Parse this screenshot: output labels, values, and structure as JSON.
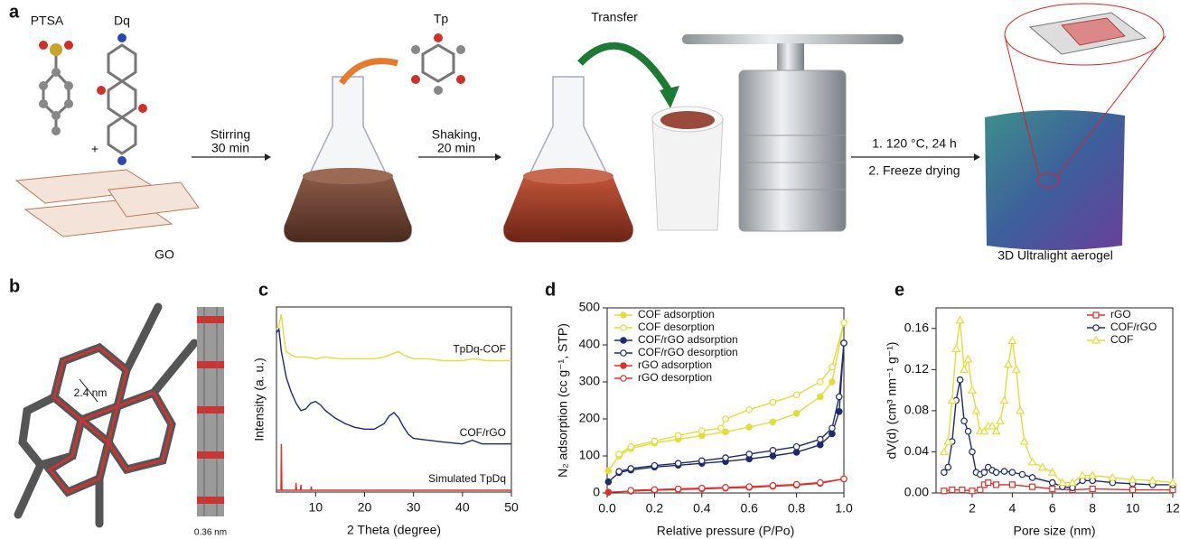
{
  "panel_a": {
    "letter": "a",
    "ptsa": "PTSA",
    "dq": "Dq",
    "plus": "+",
    "go": "GO",
    "stirring": "Stirring",
    "stirring_time": "30 min",
    "tp": "Tp",
    "shaking": "Shaking,",
    "shaking_time": "20 min",
    "transfer": "Transfer",
    "step1": "1. 120 °C, 24 h",
    "step2": "2. Freeze drying",
    "product": "3D Ultralight aerogel"
  },
  "panel_b": {
    "letter": "b",
    "pore": "2.4 nm",
    "spacing": "0.36 nm"
  },
  "chart_data": [
    {
      "type": "line",
      "panel": "c",
      "xlabel": "2 Theta (degree)",
      "ylabel": "Intensity (a. u.)",
      "xlim": [
        2,
        50
      ],
      "xticks": [
        10,
        20,
        30,
        40,
        50
      ],
      "ylim": [
        0,
        100
      ],
      "curve_labels": true,
      "series": [
        {
          "name": "TpDq-COF",
          "color": "#e3dc3a",
          "x": [
            2,
            2.5,
            3,
            3.5,
            4,
            5,
            6,
            8,
            10,
            12,
            15,
            18,
            20,
            22,
            24,
            26,
            27,
            28,
            30,
            33,
            36,
            40,
            42,
            45,
            48,
            50
          ],
          "values": [
            88,
            90,
            96,
            84,
            76,
            74,
            73,
            73,
            72,
            73,
            72,
            72,
            72,
            72,
            73,
            75,
            76,
            74,
            72,
            72,
            71,
            71,
            72,
            71,
            71,
            71
          ]
        },
        {
          "name": "COF/rGO",
          "color": "#1f2a6e",
          "x": [
            2,
            2.5,
            3,
            4,
            5,
            6,
            7,
            8,
            9,
            10,
            11,
            12,
            14,
            16,
            18,
            20,
            22,
            24,
            25,
            26,
            27,
            28,
            29,
            30,
            33,
            36,
            40,
            42,
            44,
            47,
            50
          ],
          "values": [
            86,
            88,
            76,
            62,
            54,
            48,
            44,
            45,
            48,
            49,
            47,
            44,
            40,
            37,
            35,
            34,
            34,
            37,
            41,
            43,
            40,
            35,
            31,
            29,
            28,
            27,
            26,
            28,
            26,
            26,
            26
          ]
        },
        {
          "name": "Simulated TpDq",
          "color": "#e0302a",
          "x": [
            2,
            2.9,
            3,
            3.1,
            5,
            5.9,
            6,
            6.1,
            6.9,
            7,
            7.1,
            9,
            9.1,
            9.2,
            12,
            25,
            50
          ],
          "values": [
            1,
            1,
            26,
            1,
            1,
            1,
            5,
            1,
            1,
            4,
            1,
            1,
            3,
            1,
            1,
            1,
            1
          ]
        }
      ]
    },
    {
      "type": "line",
      "panel": "d",
      "xlabel": "Relative pressure (P/Po)",
      "ylabel": "N₂ adsorption (cc g⁻¹, STP)",
      "xlim": [
        0,
        1.0
      ],
      "xticks": [
        {
          "value": 0,
          "label": "0.0"
        },
        0.2,
        0.4,
        0.6,
        0.8,
        {
          "value": 1,
          "label": "1.0"
        }
      ],
      "ylim": [
        0,
        500
      ],
      "yticks": [
        0,
        100,
        200,
        300,
        400,
        500
      ],
      "legend": "top-left",
      "series": [
        {
          "name": "COF adsorption",
          "color": "#e3dc3a",
          "marker": "circle",
          "filled": true,
          "x": [
            0.005,
            0.05,
            0.1,
            0.2,
            0.3,
            0.4,
            0.5,
            0.6,
            0.7,
            0.8,
            0.9,
            0.95,
            1.0
          ],
          "values": [
            60,
            100,
            120,
            135,
            145,
            155,
            165,
            178,
            192,
            215,
            260,
            300,
            460
          ]
        },
        {
          "name": "COF desorption",
          "color": "#e3dc3a",
          "marker": "circle",
          "filled": false,
          "x": [
            0.05,
            0.1,
            0.2,
            0.3,
            0.4,
            0.48,
            0.5,
            0.6,
            0.7,
            0.8,
            0.9,
            0.95,
            1.0
          ],
          "values": [
            105,
            125,
            140,
            155,
            168,
            175,
            200,
            225,
            245,
            265,
            300,
            340,
            460
          ]
        },
        {
          "name": "COF/rGO adsorption",
          "color": "#1f2a6e",
          "marker": "circle",
          "filled": true,
          "x": [
            0.005,
            0.05,
            0.1,
            0.2,
            0.3,
            0.4,
            0.5,
            0.6,
            0.7,
            0.8,
            0.9,
            0.95,
            0.98,
            1.0
          ],
          "values": [
            30,
            55,
            62,
            70,
            75,
            80,
            85,
            92,
            100,
            110,
            130,
            160,
            220,
            405
          ]
        },
        {
          "name": "COF/rGO desorption",
          "color": "#1f2a6e",
          "marker": "circle",
          "filled": false,
          "x": [
            0.05,
            0.1,
            0.2,
            0.3,
            0.4,
            0.5,
            0.6,
            0.7,
            0.8,
            0.9,
            0.95,
            0.98,
            1.0
          ],
          "values": [
            58,
            66,
            74,
            80,
            87,
            95,
            105,
            115,
            125,
            145,
            175,
            260,
            405
          ]
        },
        {
          "name": "rGO adsorption",
          "color": "#e0302a",
          "marker": "circle",
          "filled": true,
          "x": [
            0.005,
            0.1,
            0.2,
            0.3,
            0.4,
            0.5,
            0.6,
            0.7,
            0.8,
            0.9,
            1.0
          ],
          "values": [
            2,
            5,
            7,
            9,
            11,
            13,
            15,
            18,
            21,
            26,
            38
          ]
        },
        {
          "name": "rGO desorption",
          "color": "#e0302a",
          "marker": "circle",
          "filled": false,
          "x": [
            0.1,
            0.2,
            0.3,
            0.4,
            0.5,
            0.6,
            0.7,
            0.8,
            0.9,
            1.0
          ],
          "values": [
            7,
            9,
            11,
            13,
            15,
            17,
            20,
            23,
            28,
            38
          ]
        }
      ]
    },
    {
      "type": "line",
      "panel": "e",
      "xlabel": "Pore size (nm)",
      "ylabel": "dV(d) (cm³ nm⁻¹ g⁻¹)",
      "xlim": [
        0.2,
        12
      ],
      "xticks": [
        2,
        4,
        6,
        8,
        10,
        12
      ],
      "ylim": [
        0,
        0.18
      ],
      "yticks": [
        {
          "value": 0,
          "label": "0.00"
        },
        0.04,
        0.08,
        0.12,
        0.16
      ],
      "legend": "top-right",
      "series": [
        {
          "name": "rGO",
          "color": "#e0302a",
          "marker": "square",
          "filled": false,
          "x": [
            0.6,
            1,
            1.5,
            2,
            2.4,
            2.6,
            2.8,
            3.2,
            4,
            5,
            6,
            7,
            8,
            10,
            12
          ],
          "values": [
            0.002,
            0.003,
            0.003,
            0.002,
            0.003,
            0.008,
            0.01,
            0.008,
            0.008,
            0.006,
            0.004,
            0.003,
            0.004,
            0.003,
            0.003
          ]
        },
        {
          "name": "COF/rGO",
          "color": "#1f2a6e",
          "marker": "circle",
          "filled": false,
          "x": [
            0.6,
            0.8,
            1,
            1.2,
            1.4,
            1.6,
            1.8,
            2,
            2.2,
            2.4,
            2.6,
            2.8,
            3,
            3.2,
            3.6,
            4,
            4.5,
            5,
            6,
            6.5,
            7,
            7.5,
            8,
            9,
            10,
            11,
            12
          ],
          "values": [
            0.02,
            0.025,
            0.05,
            0.09,
            0.11,
            0.07,
            0.06,
            0.04,
            0.02,
            0.018,
            0.02,
            0.025,
            0.022,
            0.02,
            0.021,
            0.02,
            0.018,
            0.015,
            0.01,
            0.006,
            0.005,
            0.012,
            0.012,
            0.01,
            0.009,
            0.008,
            0.008
          ]
        },
        {
          "name": "COF",
          "color": "#e3dc3a",
          "marker": "triangle",
          "filled": false,
          "x": [
            0.6,
            0.8,
            1,
            1.2,
            1.4,
            1.6,
            1.8,
            2,
            2.2,
            2.4,
            2.6,
            2.8,
            3,
            3.2,
            3.4,
            3.6,
            3.8,
            4,
            4.2,
            4.4,
            4.6,
            5,
            5.5,
            6,
            6.5,
            7,
            7.5,
            8,
            9,
            10,
            11,
            12
          ],
          "values": [
            0.04,
            0.05,
            0.09,
            0.14,
            0.168,
            0.12,
            0.13,
            0.1,
            0.08,
            0.06,
            0.06,
            0.065,
            0.065,
            0.06,
            0.07,
            0.09,
            0.125,
            0.148,
            0.12,
            0.08,
            0.05,
            0.03,
            0.025,
            0.02,
            0.01,
            0.01,
            0.017,
            0.017,
            0.015,
            0.013,
            0.012,
            0.01
          ]
        }
      ]
    }
  ]
}
